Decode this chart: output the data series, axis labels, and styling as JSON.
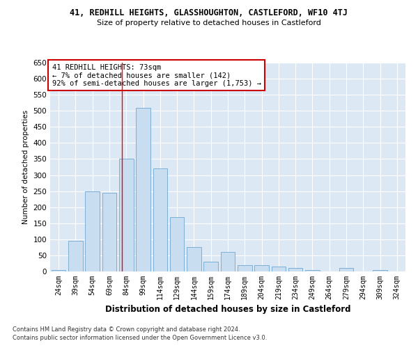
{
  "title": "41, REDHILL HEIGHTS, GLASSHOUGHTON, CASTLEFORD, WF10 4TJ",
  "subtitle": "Size of property relative to detached houses in Castleford",
  "xlabel": "Distribution of detached houses by size in Castleford",
  "ylabel": "Number of detached properties",
  "bar_color": "#c9ddf0",
  "bar_edge_color": "#7bafd4",
  "background_color": "#dce9f5",
  "categories": [
    "24sqm",
    "39sqm",
    "54sqm",
    "69sqm",
    "84sqm",
    "99sqm",
    "114sqm",
    "129sqm",
    "144sqm",
    "159sqm",
    "174sqm",
    "189sqm",
    "204sqm",
    "219sqm",
    "234sqm",
    "249sqm",
    "264sqm",
    "279sqm",
    "294sqm",
    "309sqm",
    "324sqm"
  ],
  "values": [
    5,
    95,
    250,
    245,
    350,
    510,
    320,
    170,
    75,
    30,
    60,
    20,
    20,
    15,
    10,
    5,
    0,
    10,
    0,
    5,
    0
  ],
  "ylim": [
    0,
    650
  ],
  "yticks": [
    0,
    50,
    100,
    150,
    200,
    250,
    300,
    350,
    400,
    450,
    500,
    550,
    600,
    650
  ],
  "red_line_x": 3.73,
  "annotation_text": "41 REDHILL HEIGHTS: 73sqm\n← 7% of detached houses are smaller (142)\n92% of semi-detached houses are larger (1,753) →",
  "annotation_box_color": "#ffffff",
  "annotation_box_edge_color": "#cc0000",
  "footnote1": "Contains HM Land Registry data © Crown copyright and database right 2024.",
  "footnote2": "Contains public sector information licensed under the Open Government Licence v3.0."
}
